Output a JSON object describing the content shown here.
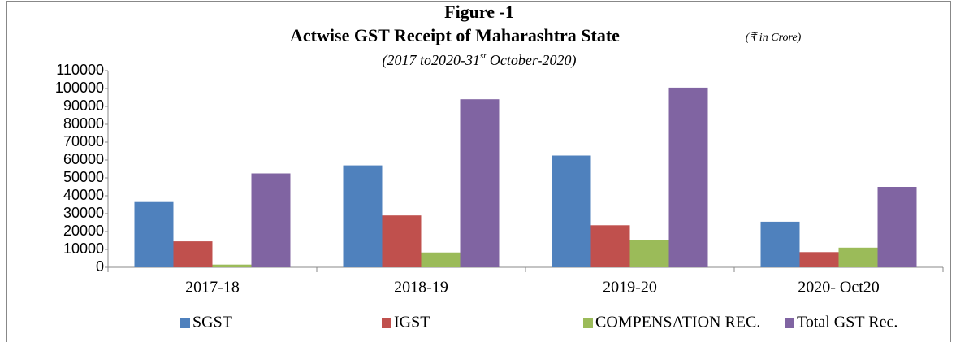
{
  "chart_data": {
    "type": "bar",
    "title": "Figure -1",
    "title2": "Actwise GST Receipt of Maharashtra State",
    "unit_note": "(₹ in Crore)",
    "subtitle": [
      "(2017 to2020-31",
      "st",
      " October-2020)"
    ],
    "categories": [
      "2017-18",
      "2018-19",
      "2019-20",
      "2020- Oct20"
    ],
    "series": [
      {
        "name": "SGST",
        "color": "#4f81bd",
        "values": [
          36500,
          57000,
          62500,
          25500
        ]
      },
      {
        "name": "IGST",
        "color": "#c0504d",
        "values": [
          14500,
          29000,
          23500,
          8500
        ]
      },
      {
        "name": "COMPENSATION REC.",
        "color": "#9bbb59",
        "values": [
          1500,
          8300,
          15000,
          11000
        ]
      },
      {
        "name": "Total GST Rec.",
        "color": "#8064a2",
        "values": [
          52500,
          94000,
          100500,
          45000
        ]
      }
    ],
    "ylim": [
      0,
      110000
    ],
    "yticks": [
      0,
      10000,
      20000,
      30000,
      40000,
      50000,
      60000,
      70000,
      80000,
      90000,
      100000,
      110000
    ],
    "grid": false,
    "legend": "bottom"
  }
}
